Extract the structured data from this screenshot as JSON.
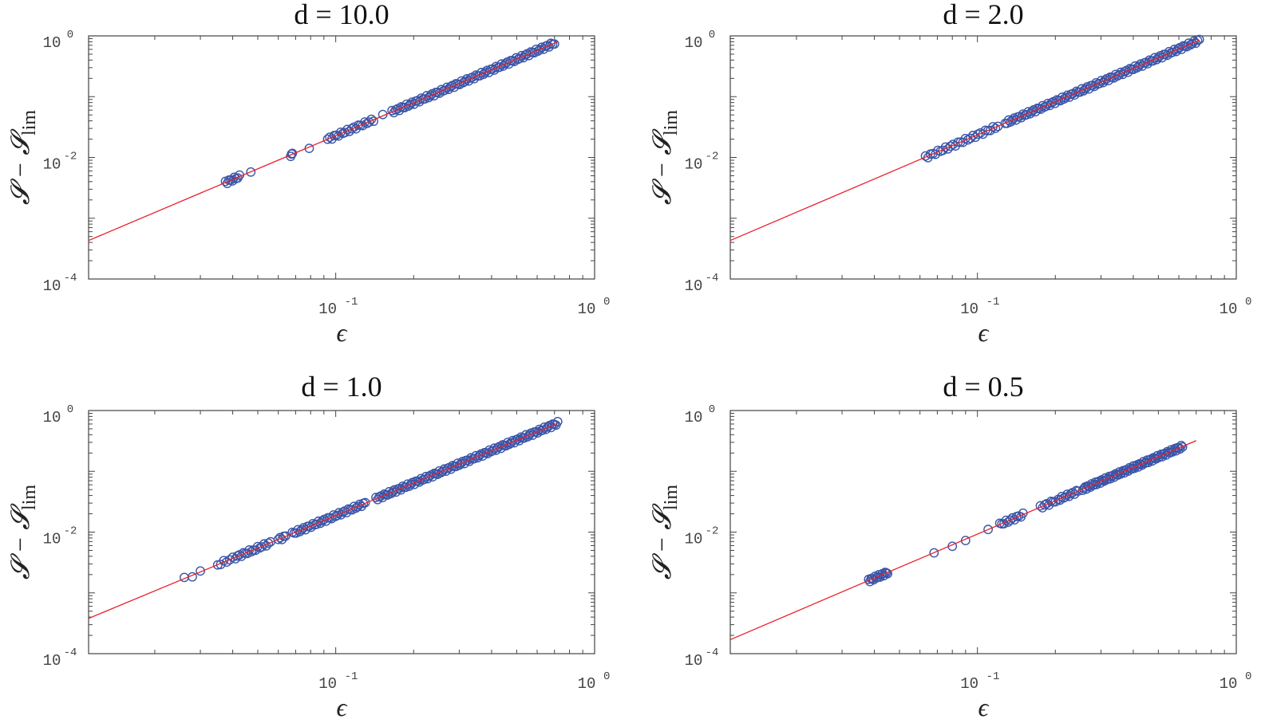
{
  "figure": {
    "ylabel_main": "𝓢 − 𝓢",
    "ylabel_sub": "lim",
    "xlabel": "ϵ"
  },
  "chart_data": [
    {
      "type": "scatter",
      "title": "d = 10.0",
      "xlabel": "ϵ",
      "ylabel": "𝓢 − 𝓢lim",
      "xscale": "log",
      "yscale": "log",
      "xlim": [
        0.0111,
        1.0
      ],
      "ylim": [
        0.0001,
        1.0
      ],
      "x_tick_labels": [
        "10",
        "10"
      ],
      "x_tick_exponents": [
        "-1",
        "0"
      ],
      "x_tick_values": [
        0.1,
        1.0
      ],
      "y_tick_labels": [
        "10",
        "10",
        "10"
      ],
      "y_tick_exponents": [
        "0",
        "-2",
        "-4"
      ],
      "y_tick_values": [
        1.0,
        0.01,
        0.0001
      ],
      "grid": false,
      "fit_line": {
        "x": [
          0.0111,
          0.72
        ],
        "y": [
          0.00043,
          0.8
        ]
      },
      "marker_color": "#3a55a8",
      "line_color": "#e8202a",
      "clusters": [
        {
          "x_start": 0.0375,
          "x_end": 0.0425,
          "count": 9
        },
        {
          "x_start": 0.047,
          "x_end": 0.047,
          "count": 1
        },
        {
          "x_start": 0.067,
          "x_end": 0.068,
          "count": 3
        },
        {
          "x_start": 0.079,
          "x_end": 0.079,
          "count": 1
        },
        {
          "x_start": 0.093,
          "x_end": 0.14,
          "count": 22
        },
        {
          "x_start": 0.152,
          "x_end": 0.152,
          "count": 1
        },
        {
          "x_start": 0.165,
          "x_end": 0.7,
          "count": 90
        }
      ]
    },
    {
      "type": "scatter",
      "title": "d = 2.0",
      "xlabel": "ϵ",
      "ylabel": "𝓢 − 𝓢lim",
      "xscale": "log",
      "yscale": "log",
      "xlim": [
        0.0111,
        1.0
      ],
      "ylim": [
        0.0001,
        1.0
      ],
      "x_tick_labels": [
        "10",
        "10"
      ],
      "x_tick_exponents": [
        "-1",
        "0"
      ],
      "x_tick_values": [
        0.1,
        1.0
      ],
      "y_tick_labels": [
        "10",
        "10",
        "10"
      ],
      "y_tick_exponents": [
        "0",
        "-2",
        "-4"
      ],
      "y_tick_values": [
        1.0,
        0.01,
        0.0001
      ],
      "grid": false,
      "fit_line": {
        "x": [
          0.0111,
          0.72
        ],
        "y": [
          0.00043,
          0.85
        ]
      },
      "marker_color": "#3a55a8",
      "line_color": "#e8202a",
      "clusters": [
        {
          "x_start": 0.063,
          "x_end": 0.12,
          "count": 30
        },
        {
          "x_start": 0.128,
          "x_end": 0.72,
          "count": 110
        }
      ]
    },
    {
      "type": "scatter",
      "title": "d = 1.0",
      "xlabel": "ϵ",
      "ylabel": "𝓢 − 𝓢lim",
      "xscale": "log",
      "yscale": "log",
      "xlim": [
        0.0111,
        1.0
      ],
      "ylim": [
        0.0001,
        1.0
      ],
      "x_tick_labels": [
        "10",
        "10"
      ],
      "x_tick_exponents": [
        "-1",
        "0"
      ],
      "x_tick_values": [
        0.1,
        1.0
      ],
      "y_tick_labels": [
        "10",
        "10",
        "10"
      ],
      "y_tick_exponents": [
        "0",
        "-2",
        "-4"
      ],
      "y_tick_values": [
        1.0,
        0.01,
        0.0001
      ],
      "grid": false,
      "fit_line": {
        "x": [
          0.0111,
          0.72
        ],
        "y": [
          0.00038,
          0.62
        ]
      },
      "marker_color": "#3a55a8",
      "line_color": "#e8202a",
      "clusters": [
        {
          "x_start": 0.026,
          "x_end": 0.03,
          "count": 3
        },
        {
          "x_start": 0.035,
          "x_end": 0.04,
          "count": 6
        },
        {
          "x_start": 0.041,
          "x_end": 0.048,
          "count": 10
        },
        {
          "x_start": 0.049,
          "x_end": 0.056,
          "count": 8
        },
        {
          "x_start": 0.06,
          "x_end": 0.064,
          "count": 5
        },
        {
          "x_start": 0.068,
          "x_end": 0.13,
          "count": 40
        },
        {
          "x_start": 0.143,
          "x_end": 0.72,
          "count": 110
        }
      ]
    },
    {
      "type": "scatter",
      "title": "d = 0.5",
      "xlabel": "ϵ",
      "ylabel": "𝓢 − 𝓢lim",
      "xscale": "log",
      "yscale": "log",
      "xlim": [
        0.0111,
        1.0
      ],
      "ylim": [
        0.0001,
        1.0
      ],
      "x_tick_labels": [
        "10",
        "10"
      ],
      "x_tick_exponents": [
        "-1",
        "0"
      ],
      "x_tick_values": [
        0.1,
        1.0
      ],
      "y_tick_labels": [
        "10",
        "10",
        "10"
      ],
      "y_tick_exponents": [
        "0",
        "-2",
        "-4"
      ],
      "y_tick_values": [
        1.0,
        0.01,
        0.0001
      ],
      "grid": false,
      "fit_line": {
        "x": [
          0.0111,
          0.7
        ],
        "y": [
          0.00017,
          0.32
        ]
      },
      "marker_color": "#3a55a8",
      "line_color": "#e8202a",
      "clusters": [
        {
          "x_start": 0.038,
          "x_end": 0.045,
          "count": 16
        },
        {
          "x_start": 0.068,
          "x_end": 0.068,
          "count": 1
        },
        {
          "x_start": 0.08,
          "x_end": 0.08,
          "count": 1
        },
        {
          "x_start": 0.09,
          "x_end": 0.09,
          "count": 1
        },
        {
          "x_start": 0.11,
          "x_end": 0.11,
          "count": 1
        },
        {
          "x_start": 0.122,
          "x_end": 0.15,
          "count": 12
        },
        {
          "x_start": 0.175,
          "x_end": 0.2,
          "count": 8
        },
        {
          "x_start": 0.205,
          "x_end": 0.245,
          "count": 12
        },
        {
          "x_start": 0.255,
          "x_end": 0.62,
          "count": 80
        }
      ]
    }
  ]
}
